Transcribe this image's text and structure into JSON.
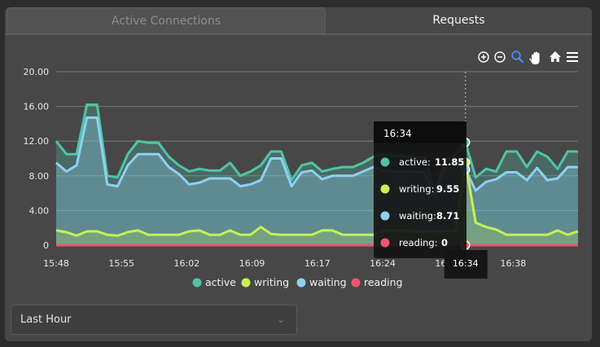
{
  "tabs": [
    {
      "label": "Active Connections",
      "active": false
    },
    {
      "label": "Requests",
      "active": true
    }
  ],
  "toolbar": [
    "zoom-in-icon",
    "zoom-out-icon",
    "magnify-icon",
    "pan-hand-icon",
    "home-icon",
    "menu-icon"
  ],
  "chart_data": {
    "type": "area",
    "title": "",
    "xlabel": "",
    "ylabel": "",
    "ylim": [
      0,
      20
    ],
    "y_ticks": [
      "20.00",
      "16.00",
      "12.00",
      "8.00",
      "4.00",
      "0"
    ],
    "x_ticks": [
      "15:48",
      "15:55",
      "16:02",
      "16:09",
      "16:17",
      "16:24",
      "16:31",
      "16:38"
    ],
    "crosshair_label": "16:34",
    "legend_position": "bottom",
    "series": [
      {
        "name": "active",
        "color": "#4fc4a8",
        "values": [
          12,
          10.5,
          10.5,
          16.2,
          16.2,
          8,
          7.8,
          10.5,
          12,
          11.8,
          11.8,
          10.2,
          9.2,
          8.5,
          8.8,
          8.6,
          8.6,
          9.5,
          8,
          8.5,
          9.2,
          10.8,
          10.8,
          7.5,
          9.2,
          9.5,
          8.5,
          8.8,
          9,
          9,
          9.5,
          10.2,
          10.5,
          10.3,
          10.3,
          10.1,
          10.1,
          6.3,
          9.8,
          10.3,
          11.85,
          7.8,
          8.8,
          8.5,
          10.8,
          10.8,
          9,
          10.8,
          10.2,
          8.8,
          10.8,
          10.8
        ]
      },
      {
        "name": "writing",
        "color": "#c5f157",
        "values": [
          1.7,
          1.5,
          1.1,
          1.6,
          1.6,
          1.2,
          1.1,
          1.5,
          1.7,
          1.2,
          1.2,
          1.2,
          1.2,
          1.6,
          1.7,
          1.2,
          1.2,
          1.7,
          1.2,
          1.2,
          2.1,
          1.3,
          1.2,
          1.2,
          1.2,
          1.2,
          1.7,
          1.7,
          1.2,
          1.2,
          1.2,
          1.2,
          1.7,
          1.7,
          1.7,
          1.6,
          1.6,
          1.6,
          1.6,
          1.6,
          9.55,
          2.6,
          2.1,
          1.8,
          1.2,
          1.2,
          1.2,
          1.2,
          1.2,
          1.7,
          1.2,
          1.6
        ]
      },
      {
        "name": "waiting",
        "color": "#8ed0f4",
        "values": [
          9.5,
          8.5,
          9.2,
          14.7,
          14.7,
          7,
          6.8,
          9.2,
          10.5,
          10.5,
          10.5,
          9,
          8.2,
          7,
          7.2,
          7.7,
          7.7,
          7.7,
          6.8,
          7,
          7.5,
          10,
          10,
          6.8,
          8.4,
          8.6,
          7.6,
          8,
          8,
          8,
          8.5,
          9,
          8.6,
          8.5,
          8.5,
          8.5,
          8.4,
          5.8,
          9,
          9.8,
          8.71,
          6.3,
          7.3,
          7.6,
          8.4,
          8.4,
          7.5,
          8.9,
          7.5,
          7.7,
          9,
          9
        ]
      },
      {
        "name": "reading",
        "color": "#f0556a",
        "values": [
          0,
          0,
          0,
          0,
          0,
          0,
          0,
          0,
          0,
          0,
          0,
          0,
          0,
          0,
          0,
          0,
          0,
          0,
          0,
          0,
          0,
          0,
          0,
          0,
          0,
          0,
          0,
          0,
          0,
          0,
          0,
          0,
          0,
          0,
          0,
          0,
          0,
          0,
          0,
          0,
          0,
          0,
          0,
          0,
          0,
          0,
          0,
          0,
          0,
          0,
          0,
          0
        ]
      }
    ]
  },
  "tooltip": {
    "title": "16:34",
    "rows": [
      {
        "label": "active:",
        "value": "11.85",
        "color": "#4fc4a8"
      },
      {
        "label": "writing:",
        "value": "9.55",
        "color": "#c5f157"
      },
      {
        "label": "waiting:",
        "value": "8.71",
        "color": "#8ed0f4"
      },
      {
        "label": "reading:",
        "value": "0",
        "color": "#f0556a"
      }
    ]
  },
  "time_range": {
    "selected": "Last Hour"
  }
}
